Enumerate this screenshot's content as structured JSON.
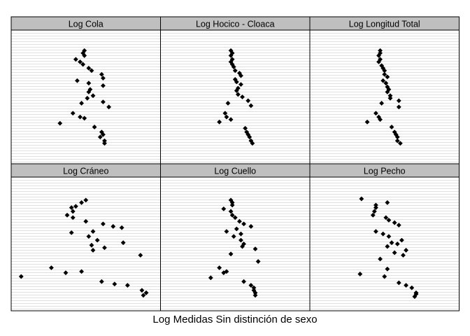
{
  "figure": {
    "caption": "Log Medidas Sin distinción de sexo"
  },
  "colors": {
    "strip_bg": "#bfbfbf",
    "grid": "#e0e0e0",
    "border": "#000000",
    "point": "#000000"
  },
  "chart_data": [
    {
      "type": "scatter",
      "title": "Log Cola",
      "grid": true,
      "xlim": [
        0,
        1
      ],
      "ylim": [
        0,
        1
      ],
      "x": [
        0.49,
        0.48,
        0.49,
        0.43,
        0.46,
        0.48,
        0.52,
        0.54,
        0.61,
        0.62,
        0.44,
        0.52,
        0.62,
        0.53,
        0.52,
        0.55,
        0.51,
        0.62,
        0.47,
        0.66,
        0.41,
        0.46,
        0.32,
        0.49,
        0.56,
        0.61,
        0.62,
        0.6,
        0.63,
        0.63
      ],
      "y": [
        0.87,
        0.85,
        0.83,
        0.8,
        0.78,
        0.76,
        0.73,
        0.71,
        0.68,
        0.65,
        0.63,
        0.61,
        0.59,
        0.56,
        0.54,
        0.51,
        0.49,
        0.46,
        0.45,
        0.42,
        0.37,
        0.34,
        0.29,
        0.33,
        0.26,
        0.22,
        0.2,
        0.18,
        0.15,
        0.13
      ]
    },
    {
      "type": "scatter",
      "title": "Log Hocico - Cloaca",
      "grid": true,
      "xlim": [
        0,
        1
      ],
      "ylim": [
        0,
        1
      ],
      "x": [
        0.47,
        0.48,
        0.47,
        0.48,
        0.47,
        0.48,
        0.49,
        0.5,
        0.53,
        0.54,
        0.5,
        0.51,
        0.54,
        0.52,
        0.51,
        0.52,
        0.55,
        0.59,
        0.45,
        0.61,
        0.43,
        0.44,
        0.39,
        0.47,
        0.57,
        0.58,
        0.59,
        0.6,
        0.61,
        0.62
      ],
      "y": [
        0.87,
        0.85,
        0.83,
        0.8,
        0.78,
        0.76,
        0.74,
        0.71,
        0.69,
        0.67,
        0.64,
        0.62,
        0.6,
        0.57,
        0.55,
        0.52,
        0.5,
        0.47,
        0.45,
        0.43,
        0.37,
        0.34,
        0.3,
        0.32,
        0.25,
        0.22,
        0.2,
        0.18,
        0.15,
        0.13
      ]
    },
    {
      "type": "scatter",
      "title": "Log Longitud Total",
      "grid": true,
      "xlim": [
        0,
        1
      ],
      "ylim": [
        0,
        1
      ],
      "x": [
        0.47,
        0.47,
        0.46,
        0.47,
        0.46,
        0.48,
        0.49,
        0.5,
        0.5,
        0.52,
        0.49,
        0.51,
        0.52,
        0.53,
        0.52,
        0.54,
        0.54,
        0.6,
        0.48,
        0.6,
        0.44,
        0.46,
        0.38,
        0.47,
        0.55,
        0.57,
        0.58,
        0.59,
        0.59,
        0.61
      ],
      "y": [
        0.87,
        0.85,
        0.83,
        0.8,
        0.78,
        0.75,
        0.73,
        0.71,
        0.68,
        0.66,
        0.63,
        0.61,
        0.58,
        0.56,
        0.54,
        0.51,
        0.49,
        0.47,
        0.45,
        0.42,
        0.37,
        0.34,
        0.3,
        0.32,
        0.26,
        0.22,
        0.2,
        0.18,
        0.15,
        0.13
      ]
    },
    {
      "type": "scatter",
      "title": "Log Cráneo",
      "grid": true,
      "xlim": [
        0,
        1
      ],
      "ylim": [
        0,
        1
      ],
      "x": [
        0.5,
        0.47,
        0.43,
        0.4,
        0.41,
        0.37,
        0.41,
        0.5,
        0.62,
        0.69,
        0.55,
        0.75,
        0.4,
        0.52,
        0.58,
        0.54,
        0.76,
        0.63,
        0.55,
        0.88,
        0.26,
        0.36,
        0.05,
        0.47,
        0.61,
        0.7,
        0.79,
        0.89,
        0.92,
        0.9
      ],
      "y": [
        0.85,
        0.83,
        0.8,
        0.79,
        0.76,
        0.73,
        0.71,
        0.68,
        0.66,
        0.64,
        0.6,
        0.63,
        0.59,
        0.56,
        0.53,
        0.49,
        0.51,
        0.47,
        0.45,
        0.41,
        0.31,
        0.27,
        0.24,
        0.28,
        0.2,
        0.18,
        0.17,
        0.13,
        0.11,
        0.09
      ]
    },
    {
      "type": "scatter",
      "title": "Log Cuello",
      "grid": true,
      "xlim": [
        0,
        1
      ],
      "ylim": [
        0,
        1
      ],
      "x": [
        0.47,
        0.48,
        0.48,
        0.42,
        0.47,
        0.48,
        0.5,
        0.53,
        0.56,
        0.61,
        0.44,
        0.51,
        0.54,
        0.49,
        0.54,
        0.56,
        0.55,
        0.64,
        0.47,
        0.66,
        0.39,
        0.44,
        0.33,
        0.42,
        0.56,
        0.61,
        0.63,
        0.63,
        0.64,
        0.64
      ],
      "y": [
        0.85,
        0.83,
        0.81,
        0.78,
        0.76,
        0.73,
        0.71,
        0.68,
        0.66,
        0.64,
        0.6,
        0.62,
        0.58,
        0.56,
        0.53,
        0.5,
        0.48,
        0.46,
        0.42,
        0.36,
        0.31,
        0.28,
        0.23,
        0.27,
        0.2,
        0.17,
        0.15,
        0.13,
        0.11,
        0.09
      ]
    },
    {
      "type": "scatter",
      "title": "Log Pecho",
      "grid": true,
      "xlim": [
        0,
        1
      ],
      "ylim": [
        0,
        1
      ],
      "x": [
        0.34,
        0.52,
        0.44,
        0.44,
        0.43,
        0.42,
        0.51,
        0.53,
        0.57,
        0.6,
        0.44,
        0.49,
        0.53,
        0.62,
        0.55,
        0.59,
        0.52,
        0.65,
        0.57,
        0.63,
        0.47,
        0.52,
        0.33,
        0.5,
        0.6,
        0.65,
        0.69,
        0.72,
        0.72,
        0.71
      ],
      "y": [
        0.86,
        0.83,
        0.81,
        0.79,
        0.76,
        0.73,
        0.71,
        0.69,
        0.67,
        0.65,
        0.6,
        0.58,
        0.56,
        0.53,
        0.51,
        0.5,
        0.48,
        0.45,
        0.43,
        0.41,
        0.38,
        0.3,
        0.26,
        0.24,
        0.19,
        0.17,
        0.15,
        0.11,
        0.1,
        0.08
      ]
    }
  ]
}
